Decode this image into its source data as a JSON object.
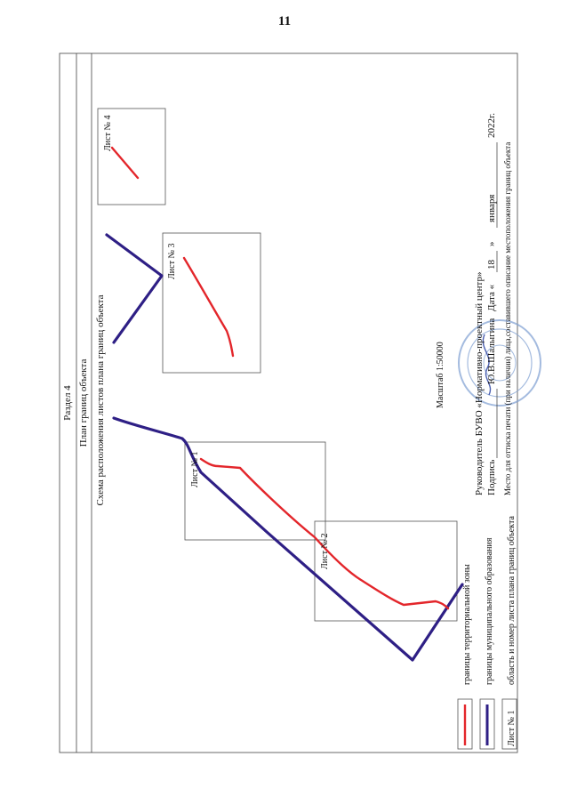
{
  "page_number": "11",
  "section_title": "Раздел 4",
  "plan_title": "План границ объекта",
  "scheme_title": "Схема расположения листов плана границ объекта",
  "scale_label": "Масштаб 1:50000",
  "sheets": [
    {
      "label": "Лист № 1"
    },
    {
      "label": "Лист № 2"
    },
    {
      "label": "Лист № 3"
    },
    {
      "label": "Лист № 4"
    }
  ],
  "legend": {
    "items": [
      {
        "label": "границы территориальной зоны",
        "color": "#e3262b"
      },
      {
        "label": "границы муниципального образования",
        "color": "#2e1f85"
      },
      {
        "label": "область и номер листа плана границ объекта",
        "sample": "Лист № 1"
      }
    ]
  },
  "signature": {
    "line1": "Руководитель БУВО «Нормативно-проектный центр»",
    "line2_prefix": "Подпись",
    "line2_name": "Ю.В.Шалыгина",
    "line2_date_prefix": "Дата «",
    "day": "18",
    "quote_close": "»",
    "month": "января",
    "year": "2022г.",
    "line3": "Место для оттиска печати (при наличии) лица,составившего описание местоположения границ объекта"
  }
}
